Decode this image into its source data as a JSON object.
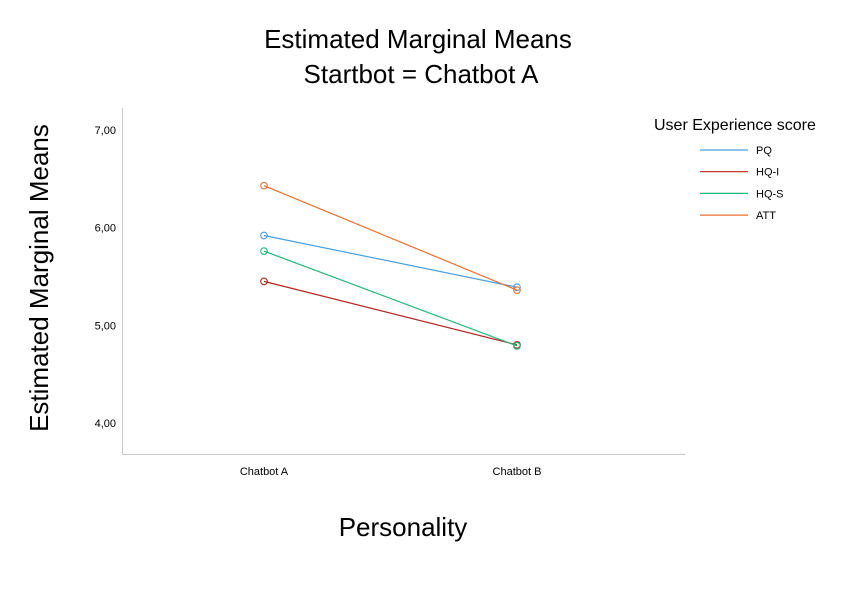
{
  "chart_data": {
    "type": "line",
    "title": "Estimated Marginal Means",
    "subtitle": "Startbot = Chatbot A",
    "xlabel": "Personality",
    "ylabel": "Estimated Marginal Means",
    "categories": [
      "Chatbot A",
      "Chatbot B"
    ],
    "ylim": [
      3.7,
      7.2
    ],
    "yticks": [
      4.0,
      5.0,
      6.0,
      7.0
    ],
    "ytick_labels": [
      "4,00",
      "5,00",
      "6,00",
      "7,00"
    ],
    "grid": false,
    "legend": {
      "title": "User Experience score",
      "position": "right"
    },
    "series": [
      {
        "name": "PQ",
        "color": "#4a9fe0",
        "values": [
          5.92,
          5.39
        ]
      },
      {
        "name": "HQ-I",
        "color": "#b3261e",
        "values": [
          5.45,
          4.8
        ]
      },
      {
        "name": "HQ-S",
        "color": "#1fb877",
        "values": [
          5.76,
          4.79
        ]
      },
      {
        "name": "ATT",
        "color": "#ee6d2d",
        "values": [
          6.43,
          5.36
        ]
      }
    ]
  }
}
